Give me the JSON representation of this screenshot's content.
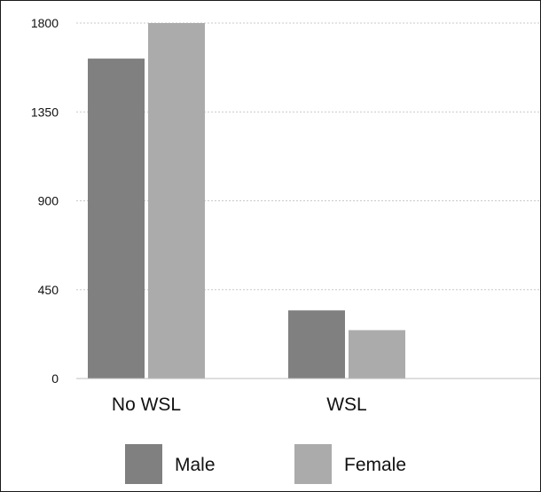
{
  "chart_data": {
    "type": "bar",
    "title": "",
    "xlabel": "",
    "ylabel": "",
    "ylim": [
      0,
      1800
    ],
    "yticks": [
      0,
      450,
      900,
      1350,
      1800
    ],
    "grid": true,
    "legend_position": "bottom",
    "categories": [
      "No WSL",
      "WSL"
    ],
    "series": [
      {
        "name": "Male",
        "color": "#808080",
        "values": [
          1620,
          345
        ]
      },
      {
        "name": "Female",
        "color": "#ababab",
        "values": [
          1800,
          245
        ]
      }
    ]
  }
}
